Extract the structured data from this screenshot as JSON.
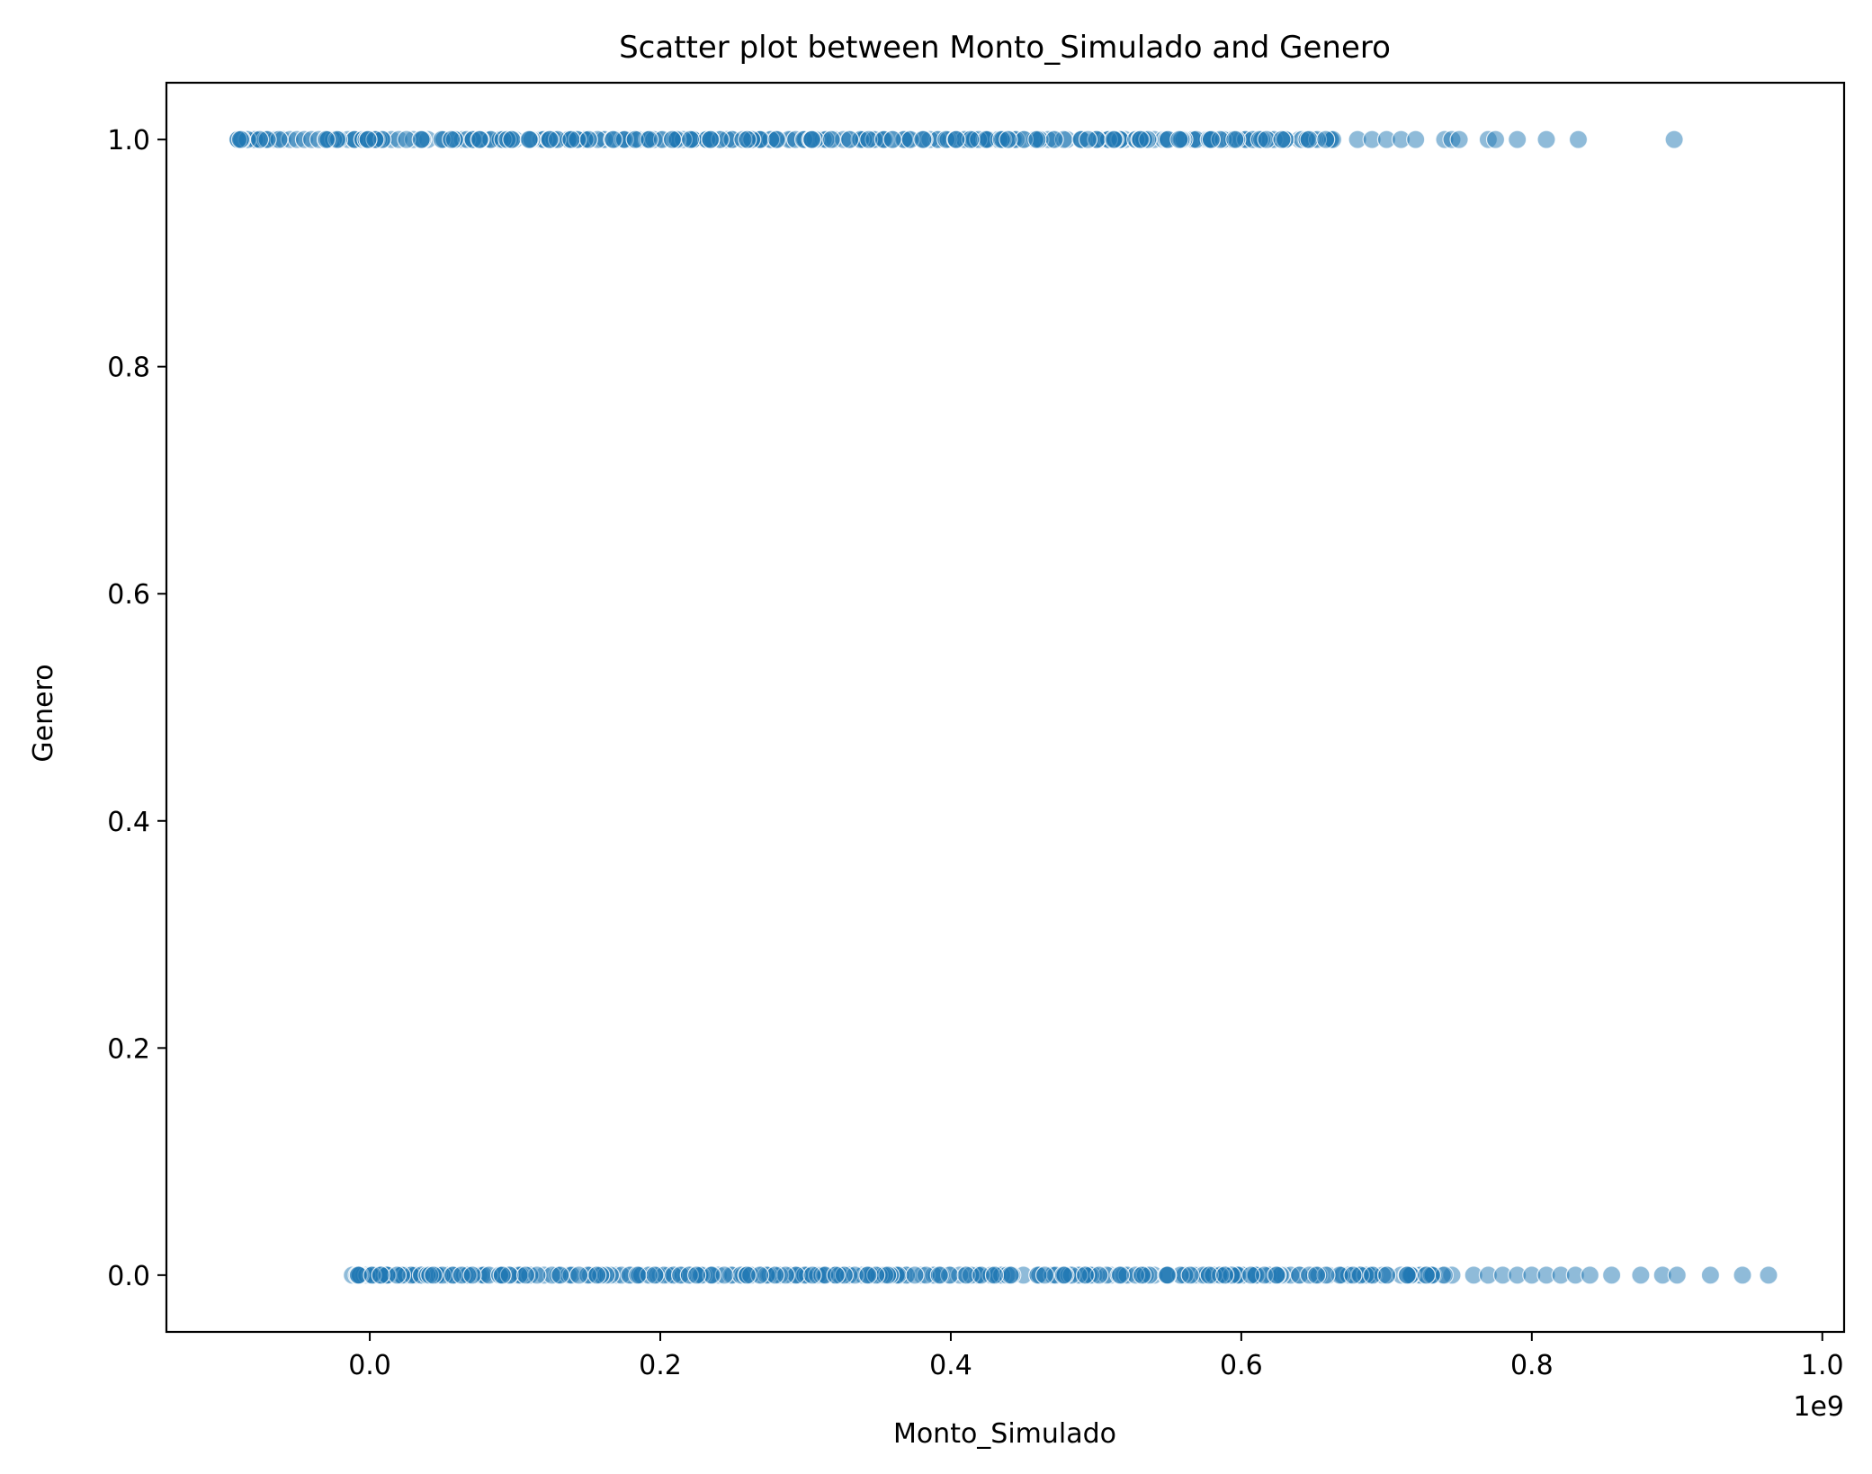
{
  "chart_data": {
    "type": "scatter",
    "title": "Scatter plot between Monto_Simulado and Genero",
    "xlabel": "Monto_Simulado",
    "ylabel": "Genero",
    "x_offset_label": "1e9",
    "xlim": [
      -0.14,
      1.015
    ],
    "ylim": [
      -0.05,
      1.05
    ],
    "x_ticks": [
      0.0,
      0.2,
      0.4,
      0.6,
      0.8,
      1.0
    ],
    "x_tick_labels": [
      "0.0",
      "0.2",
      "0.4",
      "0.6",
      "0.8",
      "1.0"
    ],
    "y_ticks": [
      0.0,
      0.2,
      0.4,
      0.6,
      0.8,
      1.0
    ],
    "y_tick_labels": [
      "0.0",
      "0.2",
      "0.4",
      "0.6",
      "0.8",
      "1.0"
    ],
    "grid": false,
    "legend": "none",
    "colors": {
      "marker": "#1f77b4",
      "marker_edge": "#ffffff",
      "axes": "#000000"
    },
    "marker_alpha": 0.5,
    "series": [
      {
        "y": 1.0,
        "x_dense_range": [
          -0.095,
          0.665
        ],
        "x_points": [
          -0.09,
          -0.085,
          -0.08,
          -0.075,
          -0.07,
          -0.065,
          -0.06,
          -0.055,
          -0.05,
          -0.045,
          -0.04,
          -0.035,
          -0.03,
          -0.025,
          -0.02,
          -0.015,
          -0.01,
          -0.005,
          0.0,
          0.002,
          0.005,
          0.01,
          0.015,
          0.02,
          0.03,
          0.04,
          0.05,
          0.06,
          0.07,
          0.08,
          0.09,
          0.1,
          0.11,
          0.12,
          0.13,
          0.14,
          0.15,
          0.16,
          0.17,
          0.18,
          0.19,
          0.2,
          0.21,
          0.22,
          0.23,
          0.24,
          0.25,
          0.26,
          0.27,
          0.28,
          0.29,
          0.3,
          0.31,
          0.32,
          0.33,
          0.34,
          0.35,
          0.36,
          0.37,
          0.38,
          0.39,
          0.4,
          0.41,
          0.42,
          0.43,
          0.44,
          0.45,
          0.46,
          0.47,
          0.48,
          0.49,
          0.5,
          0.51,
          0.52,
          0.53,
          0.54,
          0.55,
          0.56,
          0.57,
          0.58,
          0.59,
          0.6,
          0.61,
          0.62,
          0.63,
          0.64,
          0.65,
          0.66,
          0.68,
          0.69,
          0.7,
          0.71,
          0.72,
          0.74,
          0.745,
          0.75,
          0.77,
          0.775,
          0.79,
          0.81,
          0.832,
          0.898
        ]
      },
      {
        "y": 0.0,
        "x_dense_range": [
          -0.012,
          0.745
        ],
        "x_points": [
          -0.012,
          -0.008,
          -0.004,
          0.0,
          0.004,
          0.008,
          0.012,
          0.02,
          0.03,
          0.04,
          0.05,
          0.06,
          0.07,
          0.08,
          0.09,
          0.1,
          0.11,
          0.12,
          0.13,
          0.14,
          0.15,
          0.16,
          0.17,
          0.18,
          0.19,
          0.2,
          0.21,
          0.22,
          0.23,
          0.24,
          0.25,
          0.26,
          0.27,
          0.28,
          0.29,
          0.3,
          0.31,
          0.32,
          0.33,
          0.34,
          0.35,
          0.36,
          0.37,
          0.38,
          0.39,
          0.4,
          0.41,
          0.42,
          0.43,
          0.44,
          0.45,
          0.46,
          0.47,
          0.48,
          0.49,
          0.5,
          0.51,
          0.52,
          0.53,
          0.54,
          0.55,
          0.56,
          0.57,
          0.58,
          0.59,
          0.6,
          0.61,
          0.62,
          0.63,
          0.64,
          0.65,
          0.66,
          0.67,
          0.68,
          0.69,
          0.7,
          0.71,
          0.72,
          0.73,
          0.745,
          0.76,
          0.77,
          0.78,
          0.79,
          0.8,
          0.81,
          0.82,
          0.83,
          0.84,
          0.855,
          0.875,
          0.89,
          0.9,
          0.923,
          0.945,
          0.963
        ]
      }
    ]
  }
}
